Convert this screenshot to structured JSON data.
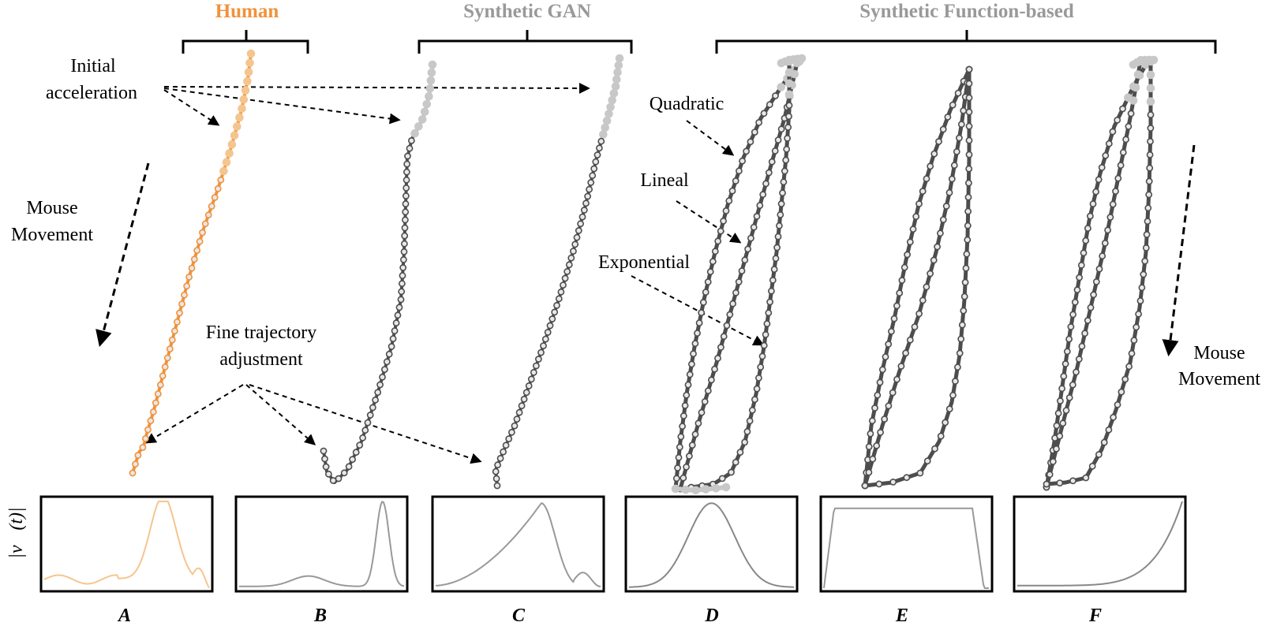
{
  "headers": {
    "human": "Human",
    "gan": "Synthetic GAN",
    "function_based": "Synthetic Function-based"
  },
  "labels": {
    "initial_acceleration_1": "Initial",
    "initial_acceleration_2": "acceleration",
    "mouse_movement_left_1": "Mouse",
    "mouse_movement_left_2": "Movement",
    "fine_adjust_1": "Fine trajectory",
    "fine_adjust_2": "adjustment",
    "quadratic": "Quadratic",
    "lineal": "Lineal",
    "exponential": "Exponential",
    "mouse_movement_right_1": "Mouse",
    "mouse_movement_right_2": "Movement",
    "velocity_axis": "|v⃗(t)|"
  },
  "panels": [
    "A",
    "B",
    "C",
    "D",
    "E",
    "F"
  ],
  "colors": {
    "human": "#F0923B",
    "human_light": "#F5C58F",
    "synthetic": "#4D4D4D",
    "synthetic_light": "#C8C8C8",
    "gan_header": "#999999",
    "arrow": "#000000"
  }
}
